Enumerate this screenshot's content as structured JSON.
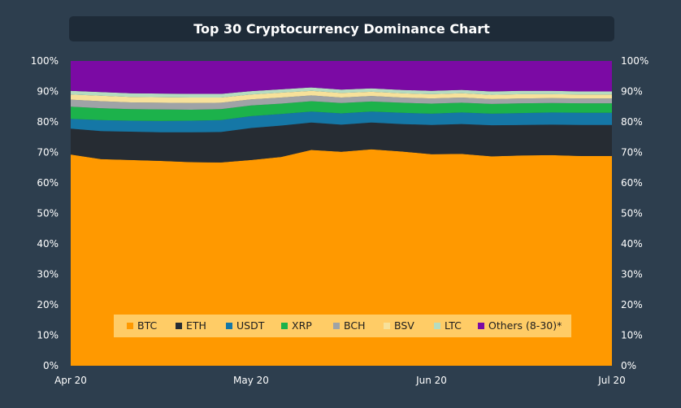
{
  "chart_data": {
    "type": "area",
    "stacked": true,
    "title": "Top 30 Cryptocurrency Dominance Chart",
    "x_ticks": [
      "Apr 20",
      "May 20",
      "Jun 20",
      "Jul 20"
    ],
    "x_range": [
      "2020-04-01",
      "2020-07-01"
    ],
    "y_ticks": [
      "0%",
      "10%",
      "20%",
      "30%",
      "40%",
      "50%",
      "60%",
      "70%",
      "80%",
      "90%",
      "100%"
    ],
    "ylim": [
      0,
      100
    ],
    "grid": false,
    "legend_position": "bottom-center",
    "series": [
      {
        "name": "BTC",
        "color": "#ff9900",
        "values": [
          69.3,
          67.8,
          67.5,
          67.2,
          66.8,
          66.7,
          67.5,
          68.5,
          70.8,
          70.2,
          71.0,
          70.3,
          69.4,
          69.5,
          68.7,
          69.0,
          69.1,
          68.8,
          68.8
        ]
      },
      {
        "name": "ETH",
        "color": "#262c33",
        "values": [
          8.5,
          9.2,
          9.3,
          9.4,
          9.8,
          10.0,
          10.5,
          10.3,
          9.0,
          8.9,
          8.8,
          9.0,
          9.6,
          9.8,
          10.2,
          10.0,
          10.0,
          10.2,
          10.2
        ]
      },
      {
        "name": "USDT",
        "color": "#1577a6",
        "values": [
          3.2,
          3.6,
          3.6,
          3.7,
          3.8,
          3.9,
          3.9,
          3.8,
          3.6,
          3.7,
          3.6,
          3.7,
          3.7,
          3.8,
          3.8,
          3.9,
          4.0,
          4.0,
          4.0
        ]
      },
      {
        "name": "XRP",
        "color": "#1cb24b",
        "values": [
          4.0,
          3.9,
          3.8,
          3.8,
          3.6,
          3.6,
          3.5,
          3.4,
          3.4,
          3.4,
          3.3,
          3.3,
          3.3,
          3.2,
          3.2,
          3.2,
          3.1,
          3.1,
          3.1
        ]
      },
      {
        "name": "BCH",
        "color": "#9fa3a6",
        "values": [
          2.3,
          2.3,
          2.2,
          2.2,
          2.2,
          2.1,
          2.0,
          2.0,
          1.9,
          1.8,
          1.8,
          1.7,
          1.7,
          1.7,
          1.6,
          1.6,
          1.6,
          1.6,
          1.6
        ]
      },
      {
        "name": "BSV",
        "color": "#f7e19a",
        "values": [
          1.7,
          1.8,
          1.8,
          1.8,
          1.8,
          1.7,
          1.6,
          1.6,
          1.5,
          1.5,
          1.4,
          1.4,
          1.4,
          1.4,
          1.4,
          1.4,
          1.3,
          1.3,
          1.3
        ]
      },
      {
        "name": "LTC",
        "color": "#b5dcc0",
        "values": [
          1.2,
          1.2,
          1.2,
          1.2,
          1.2,
          1.2,
          1.1,
          1.1,
          1.1,
          1.1,
          1.1,
          1.1,
          1.1,
          1.1,
          1.1,
          1.1,
          1.1,
          1.0,
          1.0
        ]
      },
      {
        "name": "Others (8-30)*",
        "color": "#7b0aa4",
        "values": [
          9.8,
          10.2,
          10.6,
          10.7,
          10.8,
          10.8,
          9.9,
          9.3,
          8.7,
          9.4,
          9.0,
          9.5,
          9.8,
          9.5,
          10.0,
          9.8,
          9.8,
          10.0,
          10.0
        ]
      }
    ]
  }
}
